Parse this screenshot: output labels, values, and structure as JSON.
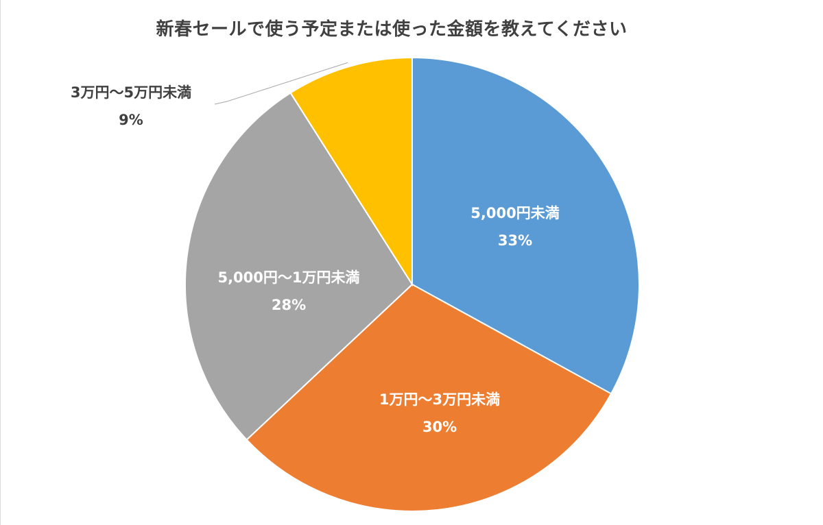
{
  "chart_data": {
    "type": "pie",
    "title": "新春セールで使う予定または使った金額を教えてください",
    "slices": [
      {
        "name": "5,000円未満",
        "value": 33,
        "label": "33%",
        "color": "#5b9bd5",
        "label_color": "#ffffff"
      },
      {
        "name": "1万円～3万円未満",
        "value": 30,
        "label": "30%",
        "color": "#ed7d31",
        "label_color": "#ffffff"
      },
      {
        "name": "5,000円～1万円未満",
        "value": 28,
        "label": "28%",
        "color": "#a5a5a5",
        "label_color": "#ffffff"
      },
      {
        "name": "3万円～5万円未満",
        "value": 9,
        "label": "9%",
        "color": "#ffc000",
        "label_color": "#404040"
      }
    ],
    "start": "12 o'clock",
    "direction": "clockwise",
    "legend": "none",
    "outside_label_slices": [
      "3万円～5万円未満"
    ]
  }
}
